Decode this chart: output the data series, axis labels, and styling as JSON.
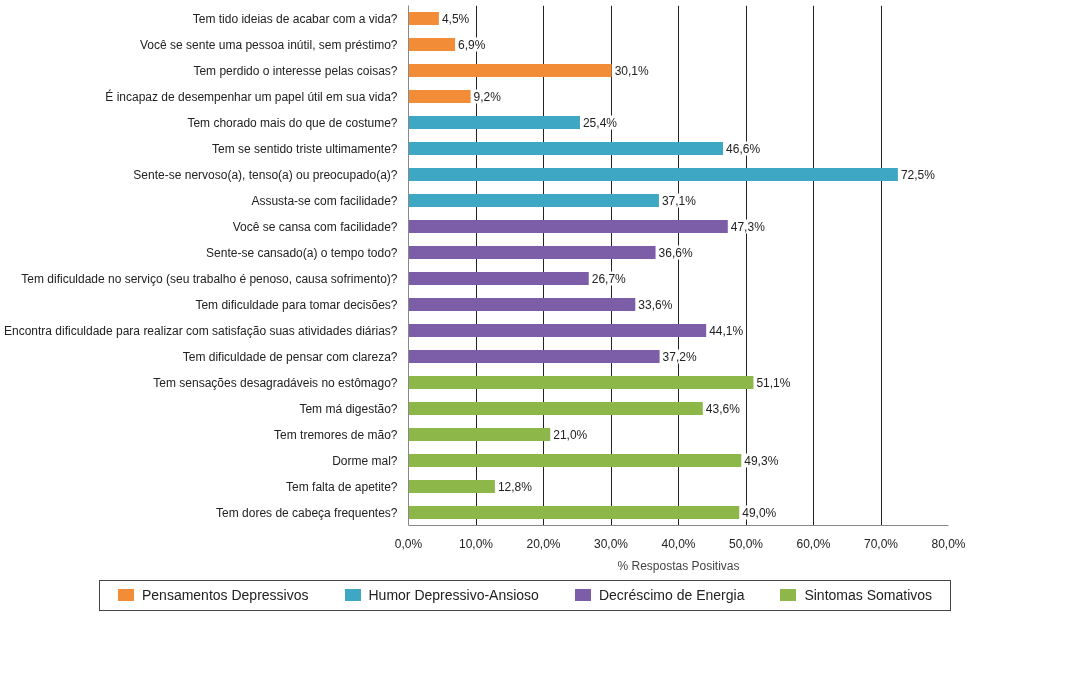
{
  "chart_data": {
    "type": "bar",
    "orientation": "horizontal",
    "xlabel": "% Respostas Positivas",
    "categories": [
      "Tem tido ideias de acabar com a vida?",
      "Você se sente uma pessoa inútil, sem préstimo?",
      "Tem perdido o interesse pelas coisas?",
      "É incapaz de desempenhar um papel útil em sua vida?",
      "Tem chorado mais do que de costume?",
      "Tem se sentido triste ultimamente?",
      "Sente-se nervoso(a), tenso(a) ou preocupado(a)?",
      "Assusta-se com facilidade?",
      "Você se cansa com facilidade?",
      "Sente-se cansado(a) o tempo todo?",
      "Tem dificuldade no serviço (seu trabalho é penoso, causa sofrimento)?",
      "Tem dificuldade para tomar decisões?",
      "Encontra dificuldade para realizar com satisfação suas atividades diárias?",
      "Tem dificuldade de pensar com clareza?",
      "Tem sensações desagradáveis no estômago?",
      "Tem má digestão?",
      "Tem tremores de mão?",
      "Dorme mal?",
      "Tem falta de apetite?",
      "Tem dores de cabeça frequentes?"
    ],
    "series": [
      {
        "name": "Pensamentos Depressivos",
        "color": "#f28c36",
        "values": [
          4.5,
          6.9,
          30.1,
          9.2,
          null,
          null,
          null,
          null,
          null,
          null,
          null,
          null,
          null,
          null,
          null,
          null,
          null,
          null,
          null,
          null
        ],
        "value_labels": [
          "4,5%",
          "6,9%",
          "30,1%",
          "9,2%",
          null,
          null,
          null,
          null,
          null,
          null,
          null,
          null,
          null,
          null,
          null,
          null,
          null,
          null,
          null,
          null
        ]
      },
      {
        "name": "Humor Depressivo-Ansioso",
        "color": "#3ea7c4",
        "values": [
          null,
          null,
          null,
          null,
          25.4,
          46.6,
          72.5,
          37.1,
          null,
          null,
          null,
          null,
          null,
          null,
          null,
          null,
          null,
          null,
          null,
          null
        ],
        "value_labels": [
          null,
          null,
          null,
          null,
          "25,4%",
          "46,6%",
          "72,5%",
          "37,1%",
          null,
          null,
          null,
          null,
          null,
          null,
          null,
          null,
          null,
          null,
          null,
          null
        ]
      },
      {
        "name": "Decréscimo de Energia",
        "color": "#7b5ea7",
        "values": [
          null,
          null,
          null,
          null,
          null,
          null,
          null,
          null,
          47.3,
          36.6,
          26.7,
          33.6,
          44.1,
          37.2,
          null,
          null,
          null,
          null,
          null,
          null
        ],
        "value_labels": [
          null,
          null,
          null,
          null,
          null,
          null,
          null,
          null,
          "47,3%",
          "36,6%",
          "26,7%",
          "33,6%",
          "44,1%",
          "37,2%",
          null,
          null,
          null,
          null,
          null,
          null
        ]
      },
      {
        "name": "Sintomas Somativos",
        "color": "#8db849",
        "values": [
          null,
          null,
          null,
          null,
          null,
          null,
          null,
          null,
          null,
          null,
          null,
          null,
          null,
          null,
          51.1,
          43.6,
          21.0,
          49.3,
          12.8,
          49.0
        ],
        "value_labels": [
          null,
          null,
          null,
          null,
          null,
          null,
          null,
          null,
          null,
          null,
          null,
          null,
          null,
          null,
          "51,1%",
          "43,6%",
          "21,0%",
          "49,3%",
          "12,8%",
          "49,0%"
        ]
      }
    ],
    "xlim": [
      0,
      80
    ],
    "xticks": [
      {
        "value": 0,
        "label": "0,0%"
      },
      {
        "value": 10,
        "label": "10,0%"
      },
      {
        "value": 20,
        "label": "20,0%"
      },
      {
        "value": 30,
        "label": "30,0%"
      },
      {
        "value": 40,
        "label": "40,0%"
      },
      {
        "value": 50,
        "label": "50,0%"
      },
      {
        "value": 60,
        "label": "60,0%"
      },
      {
        "value": 70,
        "label": "70,0%"
      },
      {
        "value": 80,
        "label": "80,0%"
      }
    ],
    "grid": "x",
    "legend": "bottom"
  }
}
